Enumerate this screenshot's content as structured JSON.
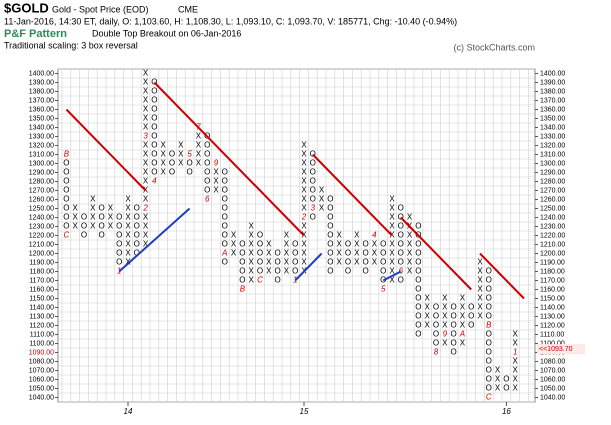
{
  "chart_data": {
    "type": "pointfigure",
    "symbol": "$GOLD",
    "name": "Gold - Spot Price (EOD)",
    "exchange": "CME",
    "quote": "11-Jan-2016, 14:30 ET, daily, O: 1,103.60, H: 1,108.30, L: 1,093.10, C: 1,093.70, V: 185771, Chg: -10.40 (-0.94%)",
    "pattern_title": "P&F Pattern",
    "pattern": "Double Top Breakout on 06-Jan-2016",
    "scaling": "Traditional scaling: 3 box reversal",
    "copyright": "(c) StockCharts.com",
    "box_size": 10,
    "ylim": [
      1035,
      1405
    ],
    "yticks": [
      {
        "value": 1040,
        "label": "1040.00"
      },
      {
        "value": 1050,
        "label": "1050.00"
      },
      {
        "value": 1060,
        "label": "1060.00"
      },
      {
        "value": 1070,
        "label": "1070.00"
      },
      {
        "value": 1080,
        "label": "1080.00"
      },
      {
        "value": 1090,
        "label": "1090.00"
      },
      {
        "value": 1100,
        "label": "1100.00"
      },
      {
        "value": 1110,
        "label": "1110.00"
      },
      {
        "value": 1120,
        "label": "1120.00"
      },
      {
        "value": 1130,
        "label": "1130.00"
      },
      {
        "value": 1140,
        "label": "1140.00"
      },
      {
        "value": 1150,
        "label": "1150.00"
      },
      {
        "value": 1160,
        "label": "1160.00"
      },
      {
        "value": 1170,
        "label": "1170.00"
      },
      {
        "value": 1180,
        "label": "1180.00"
      },
      {
        "value": 1190,
        "label": "1190.00"
      },
      {
        "value": 1200,
        "label": "1200.00"
      },
      {
        "value": 1210,
        "label": "1210.00"
      },
      {
        "value": 1220,
        "label": "1220.00"
      },
      {
        "value": 1230,
        "label": "1230.00"
      },
      {
        "value": 1240,
        "label": "1240.00"
      },
      {
        "value": 1250,
        "label": "1250.00"
      },
      {
        "value": 1260,
        "label": "1260.00"
      },
      {
        "value": 1270,
        "label": "1270.00"
      },
      {
        "value": 1280,
        "label": "1280.00"
      },
      {
        "value": 1290,
        "label": "1290.00"
      },
      {
        "value": 1300,
        "label": "1300.00"
      },
      {
        "value": 1310,
        "label": "1310.00"
      },
      {
        "value": 1320,
        "label": "1320.00"
      },
      {
        "value": 1330,
        "label": "1330.00"
      },
      {
        "value": 1340,
        "label": "1340.00"
      },
      {
        "value": 1350,
        "label": "1350.00"
      },
      {
        "value": 1360,
        "label": "1360.00"
      },
      {
        "value": 1370,
        "label": "1370.00"
      },
      {
        "value": 1380,
        "label": "1380.00"
      },
      {
        "value": 1390,
        "label": "1390.00"
      },
      {
        "value": 1400,
        "label": "1400.00"
      }
    ],
    "last_box": 1090,
    "last_price": {
      "value": 1093.7,
      "label": "<<1093.70"
    },
    "x_labels": [
      {
        "column": 7,
        "label": "14"
      },
      {
        "column": 27,
        "label": "15"
      },
      {
        "column": 50,
        "label": "16"
      }
    ],
    "columns": [
      {
        "kind": "O",
        "low": 1220,
        "high": 1310,
        "markers": [
          {
            "value": 1310,
            "label": "B"
          },
          {
            "value": 1220,
            "label": "C"
          }
        ]
      },
      {
        "kind": "X",
        "low": 1230,
        "high": 1250
      },
      {
        "kind": "O",
        "low": 1220,
        "high": 1240
      },
      {
        "kind": "X",
        "low": 1230,
        "high": 1260
      },
      {
        "kind": "O",
        "low": 1220,
        "high": 1250
      },
      {
        "kind": "X",
        "low": 1230,
        "high": 1250
      },
      {
        "kind": "O",
        "low": 1180,
        "high": 1240,
        "markers": [
          {
            "value": 1180,
            "label": "1"
          }
        ]
      },
      {
        "kind": "X",
        "low": 1190,
        "high": 1260
      },
      {
        "kind": "O",
        "low": 1200,
        "high": 1250
      },
      {
        "kind": "X",
        "low": 1210,
        "high": 1400,
        "markers": [
          {
            "value": 1250,
            "label": "2"
          },
          {
            "value": 1330,
            "label": "3"
          }
        ]
      },
      {
        "kind": "O",
        "low": 1280,
        "high": 1390,
        "markers": [
          {
            "value": 1280,
            "label": "4"
          }
        ]
      },
      {
        "kind": "X",
        "low": 1290,
        "high": 1320
      },
      {
        "kind": "O",
        "low": 1290,
        "high": 1310
      },
      {
        "kind": "X",
        "low": 1300,
        "high": 1320
      },
      {
        "kind": "O",
        "low": 1290,
        "high": 1310,
        "markers": [
          {
            "value": 1310,
            "label": "5"
          }
        ]
      },
      {
        "kind": "X",
        "low": 1300,
        "high": 1340,
        "markers": [
          {
            "value": 1340,
            "label": "7"
          }
        ]
      },
      {
        "kind": "O",
        "low": 1260,
        "high": 1330,
        "markers": [
          {
            "value": 1260,
            "label": "6"
          }
        ]
      },
      {
        "kind": "X",
        "low": 1270,
        "high": 1300,
        "markers": [
          {
            "value": 1300,
            "label": "9"
          }
        ]
      },
      {
        "kind": "O",
        "low": 1190,
        "high": 1290,
        "markers": [
          {
            "value": 1200,
            "label": "A"
          }
        ]
      },
      {
        "kind": "X",
        "low": 1200,
        "high": 1220
      },
      {
        "kind": "O",
        "low": 1160,
        "high": 1210,
        "markers": [
          {
            "value": 1160,
            "label": "B"
          }
        ]
      },
      {
        "kind": "X",
        "low": 1170,
        "high": 1230
      },
      {
        "kind": "O",
        "low": 1170,
        "high": 1220,
        "markers": [
          {
            "value": 1170,
            "label": "C"
          }
        ]
      },
      {
        "kind": "X",
        "low": 1180,
        "high": 1210
      },
      {
        "kind": "O",
        "low": 1170,
        "high": 1200
      },
      {
        "kind": "X",
        "low": 1180,
        "high": 1220
      },
      {
        "kind": "O",
        "low": 1170,
        "high": 1210,
        "markers": [
          {
            "value": 1170,
            "label": "1"
          }
        ]
      },
      {
        "kind": "X",
        "low": 1180,
        "high": 1320,
        "markers": [
          {
            "value": 1240,
            "label": "2"
          }
        ]
      },
      {
        "kind": "O",
        "low": 1240,
        "high": 1310,
        "markers": [
          {
            "value": 1250,
            "label": "3"
          }
        ]
      },
      {
        "kind": "X",
        "low": 1250,
        "high": 1270
      },
      {
        "kind": "O",
        "low": 1180,
        "high": 1260
      },
      {
        "kind": "X",
        "low": 1190,
        "high": 1220
      },
      {
        "kind": "O",
        "low": 1180,
        "high": 1210
      },
      {
        "kind": "X",
        "low": 1190,
        "high": 1220
      },
      {
        "kind": "O",
        "low": 1180,
        "high": 1210
      },
      {
        "kind": "X",
        "low": 1190,
        "high": 1220,
        "markers": [
          {
            "value": 1220,
            "label": "4"
          }
        ]
      },
      {
        "kind": "O",
        "low": 1160,
        "high": 1210,
        "markers": [
          {
            "value": 1160,
            "label": "5"
          }
        ]
      },
      {
        "kind": "X",
        "low": 1170,
        "high": 1260
      },
      {
        "kind": "O",
        "low": 1170,
        "high": 1250,
        "markers": [
          {
            "value": 1180,
            "label": "6"
          }
        ]
      },
      {
        "kind": "X",
        "low": 1180,
        "high": 1240
      },
      {
        "kind": "O",
        "low": 1110,
        "high": 1230
      },
      {
        "kind": "X",
        "low": 1120,
        "high": 1150
      },
      {
        "kind": "O",
        "low": 1090,
        "high": 1140,
        "markers": [
          {
            "value": 1090,
            "label": "8"
          }
        ]
      },
      {
        "kind": "X",
        "low": 1100,
        "high": 1150,
        "markers": [
          {
            "value": 1110,
            "label": "9"
          }
        ]
      },
      {
        "kind": "O",
        "low": 1090,
        "high": 1140
      },
      {
        "kind": "X",
        "low": 1100,
        "high": 1150,
        "markers": [
          {
            "value": 1110,
            "label": "A"
          }
        ]
      },
      {
        "kind": "O",
        "low": 1120,
        "high": 1140
      },
      {
        "kind": "X",
        "low": 1130,
        "high": 1190
      },
      {
        "kind": "O",
        "low": 1040,
        "high": 1180,
        "markers": [
          {
            "value": 1120,
            "label": "B"
          },
          {
            "value": 1040,
            "label": "C"
          }
        ]
      },
      {
        "kind": "X",
        "low": 1050,
        "high": 1070
      },
      {
        "kind": "O",
        "low": 1050,
        "high": 1060
      },
      {
        "kind": "X",
        "low": 1050,
        "high": 1110,
        "markers": [
          {
            "value": 1090,
            "label": "1"
          }
        ]
      }
    ],
    "trendlines": [
      {
        "color": "#cc0000",
        "from": [
          0,
          1360
        ],
        "to": [
          9,
          1270
        ]
      },
      {
        "color": "#cc0000",
        "from": [
          10,
          1390
        ],
        "to": [
          27,
          1220
        ]
      },
      {
        "color": "#cc0000",
        "from": [
          28,
          1310
        ],
        "to": [
          37,
          1220
        ]
      },
      {
        "color": "#cc0000",
        "from": [
          38,
          1240
        ],
        "to": [
          46,
          1160
        ]
      },
      {
        "color": "#cc0000",
        "from": [
          47,
          1200
        ],
        "to": [
          52,
          1150
        ]
      },
      {
        "color": "#1f3fbf",
        "from": [
          6,
          1180
        ],
        "to": [
          14,
          1250
        ]
      },
      {
        "color": "#1f3fbf",
        "from": [
          26,
          1170
        ],
        "to": [
          29,
          1200
        ]
      },
      {
        "color": "#1f3fbf",
        "from": [
          36,
          1170
        ],
        "to": [
          38,
          1180
        ]
      }
    ]
  }
}
